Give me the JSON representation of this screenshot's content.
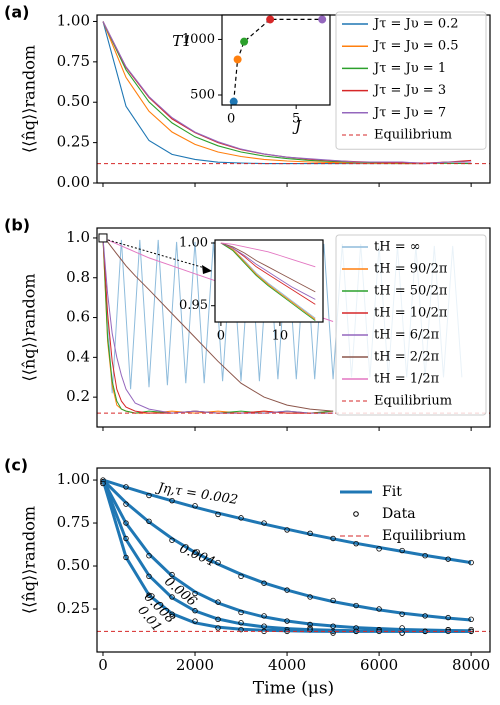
{
  "chart_data": [
    {
      "type": "line",
      "title": "(a)",
      "ylabel": "⟨⟨n̂q⟩⟩random",
      "x": [
        0,
        500,
        1000,
        1500,
        2000,
        2500,
        3000,
        3500,
        4000,
        4500,
        5000,
        5500,
        6000,
        6500,
        7000,
        7500,
        8000
      ],
      "series": [
        {
          "name": "Jτ = Jυ = 0.2",
          "color": "#1f77b4",
          "values": [
            1.0,
            0.475,
            0.263,
            0.177,
            0.146,
            0.129,
            0.124,
            0.12,
            0.12,
            0.12,
            0.12,
            0.12,
            0.12,
            0.12,
            0.12,
            0.13,
            0.13
          ]
        },
        {
          "name": "Jτ = Jυ = 0.5",
          "color": "#ff7f0e",
          "values": [
            1.0,
            0.654,
            0.444,
            0.316,
            0.239,
            0.192,
            0.164,
            0.146,
            0.136,
            0.13,
            0.126,
            0.124,
            0.122,
            0.12,
            0.12,
            0.13,
            0.13
          ]
        },
        {
          "name": "Jτ = Jυ = 1",
          "color": "#2ca02c",
          "values": [
            1.0,
            0.7,
            0.502,
            0.372,
            0.286,
            0.23,
            0.192,
            0.167,
            0.151,
            0.14,
            0.133,
            0.129,
            0.126,
            0.124,
            0.123,
            0.122,
            0.12
          ]
        },
        {
          "name": "Jτ = Jυ = 3",
          "color": "#d62728",
          "values": [
            1.0,
            0.715,
            0.529,
            0.397,
            0.312,
            0.25,
            0.207,
            0.179,
            0.16,
            0.147,
            0.138,
            0.132,
            0.128,
            0.126,
            0.124,
            0.13,
            0.14
          ]
        },
        {
          "name": "Jτ = Jυ = 7",
          "color": "#9467bd",
          "values": [
            1.0,
            0.72,
            0.535,
            0.405,
            0.315,
            0.255,
            0.21,
            0.18,
            0.16,
            0.15,
            0.14,
            0.13,
            0.13,
            0.13,
            0.12,
            0.13,
            0.13
          ]
        }
      ],
      "equilibrium": {
        "name": "Equilibrium",
        "value": 0.12,
        "color": "#d62728"
      },
      "xlim": [
        -130,
        8410
      ],
      "ylim": [
        0,
        1.04
      ],
      "xticks": [
        0,
        2000,
        4000,
        6000,
        8000
      ],
      "xticklabels": false,
      "yticks": [
        {
          "value": 0,
          "label": "0.00"
        },
        0.25,
        {
          "value": 0.5,
          "label": "0.50"
        },
        0.75,
        {
          "value": 1,
          "label": "1.00"
        }
      ]
    },
    {
      "type": "scatter",
      "xlabel": "J",
      "ylabel": "T1",
      "x": [
        0.2,
        0.5,
        1,
        3,
        7
      ],
      "values": [
        440,
        820,
        980,
        1180,
        1180
      ],
      "colors": [
        "#1f77b4",
        "#ff7f0e",
        "#2ca02c",
        "#d62728",
        "#9467bd"
      ],
      "xlim": [
        -0.7,
        7.6
      ],
      "ylim": [
        410,
        1220
      ],
      "xticks": [
        0,
        5
      ],
      "yticks": [
        500,
        1000
      ]
    },
    {
      "type": "line",
      "title": "(b)",
      "ylabel": "⟨⟨n̂q⟩⟩random",
      "x": [
        0,
        100,
        200,
        300,
        400,
        500,
        700,
        1000,
        1500,
        2000,
        2500,
        3000,
        3500,
        4000,
        4500,
        5000
      ],
      "series": [
        {
          "name": "tH = ∞",
          "color": "#8fbcdc",
          "x": [
            0,
            200,
            400,
            600,
            800,
            1000,
            1200,
            1400,
            1600,
            1800,
            2000,
            2200,
            2400,
            2600,
            2800,
            3000,
            3200,
            3400,
            3600,
            3800,
            4000,
            4200,
            4400,
            4600,
            4800,
            5000,
            5200,
            5400,
            5600,
            5800,
            6000,
            6200,
            6400,
            6600,
            6800,
            7000,
            7200,
            7400,
            7600,
            7800
          ],
          "values": [
            1.0,
            0.22,
            0.99,
            0.24,
            0.99,
            0.25,
            0.99,
            0.26,
            0.98,
            0.27,
            0.98,
            0.27,
            0.98,
            0.28,
            0.98,
            0.28,
            0.98,
            0.28,
            0.97,
            0.29,
            0.97,
            0.29,
            0.97,
            0.29,
            0.97,
            0.29,
            0.97,
            0.3,
            0.97,
            0.3,
            0.96,
            0.3,
            0.96,
            0.3,
            0.96,
            0.3,
            0.96,
            0.3,
            0.96,
            0.3
          ]
        },
        {
          "name": "tH = 90/2π",
          "color": "#ff7f0e",
          "values": [
            1.0,
            0.48,
            0.26,
            0.16,
            0.14,
            0.13,
            0.12,
            0.12,
            0.13,
            0.12,
            0.13,
            0.12,
            0.13,
            0.12,
            0.12,
            0.13
          ]
        },
        {
          "name": "tH = 50/2π",
          "color": "#2ca02c",
          "values": [
            1.0,
            0.5,
            0.28,
            0.18,
            0.14,
            0.13,
            0.12,
            0.13,
            0.12,
            0.13,
            0.12,
            0.13,
            0.12,
            0.13,
            0.12,
            0.13
          ]
        },
        {
          "name": "tH = 10/2π",
          "color": "#d62728",
          "values": [
            1.0,
            0.62,
            0.38,
            0.24,
            0.18,
            0.15,
            0.13,
            0.12,
            0.12,
            0.13,
            0.12,
            0.12,
            0.13,
            0.12,
            0.12,
            0.12
          ]
        },
        {
          "name": "tH = 6/2π",
          "color": "#9467bd",
          "values": [
            1.0,
            0.72,
            0.52,
            0.4,
            0.31,
            0.24,
            0.17,
            0.14,
            0.12,
            0.13,
            0.12,
            0.12,
            0.12,
            0.13,
            0.12,
            0.12
          ]
        },
        {
          "name": "tH = 2/2π",
          "color": "#8c564b",
          "values": [
            1.0,
            0.98,
            0.95,
            0.92,
            0.89,
            0.86,
            0.81,
            0.74,
            0.62,
            0.5,
            0.38,
            0.27,
            0.2,
            0.16,
            0.14,
            0.13
          ]
        },
        {
          "name": "tH = 1/2π",
          "color": "#e377c2",
          "values": [
            1.0,
            0.99,
            0.98,
            0.97,
            0.96,
            0.95,
            0.93,
            0.9,
            0.86,
            0.82,
            0.78,
            0.74,
            0.7,
            0.66,
            0.62,
            0.58
          ]
        }
      ],
      "equilibrium": {
        "name": "Equilibrium",
        "value": 0.12,
        "color": "#d62728"
      },
      "xlim": [
        -130,
        8410
      ],
      "ylim": [
        0.05,
        1.05
      ],
      "xticks": [
        0,
        2000,
        4000,
        6000,
        8000
      ],
      "xticklabels": false,
      "yticks": [
        0.2,
        0.4,
        0.6,
        0.8,
        {
          "value": 1,
          "label": "1.0"
        }
      ]
    },
    {
      "type": "line",
      "x": [
        0,
        2,
        4,
        6,
        8,
        10,
        12,
        14,
        16
      ],
      "series": [
        {
          "color": "#8fbcdc",
          "values": [
            1.0,
            0.995,
            0.986,
            0.976,
            0.968,
            0.961,
            0.954,
            0.947,
            0.94
          ]
        },
        {
          "color": "#ff7f0e",
          "values": [
            1.0,
            0.995,
            0.985,
            0.975,
            0.967,
            0.96,
            0.953,
            0.946,
            0.939
          ]
        },
        {
          "color": "#2ca02c",
          "values": [
            1.0,
            0.994,
            0.984,
            0.974,
            0.966,
            0.959,
            0.952,
            0.945,
            0.938
          ]
        },
        {
          "color": "#d62728",
          "values": [
            1.0,
            0.996,
            0.989,
            0.981,
            0.975,
            0.969,
            0.963,
            0.957,
            0.951
          ]
        },
        {
          "color": "#9467bd",
          "values": [
            1.0,
            0.996,
            0.99,
            0.983,
            0.977,
            0.971,
            0.965,
            0.96,
            0.955
          ]
        },
        {
          "color": "#8c564b",
          "values": [
            1.0,
            0.997,
            0.992,
            0.986,
            0.981,
            0.976,
            0.971,
            0.966,
            0.961
          ]
        },
        {
          "color": "#e377c2",
          "values": [
            1.0,
            0.999,
            0.997,
            0.995,
            0.993,
            0.99,
            0.987,
            0.984,
            0.981
          ]
        }
      ],
      "xlim": [
        -1,
        17.3
      ],
      "ylim": [
        0.937,
        1.0024
      ],
      "xticks": [
        0,
        10
      ],
      "yticks": [
        0.95,
        {
          "value": 1,
          "label": "1.00"
        }
      ]
    },
    {
      "type": "fit",
      "title": "(c)",
      "ylabel": "⟨⟨n̂q⟩⟩random",
      "xlabel": "Time (μs)",
      "fit_name": "Fit",
      "data_name": "Data",
      "color": "#1f77b4",
      "x": [
        0,
        500,
        1000,
        1500,
        2000,
        2500,
        3000,
        3500,
        4000,
        4500,
        5000,
        5500,
        6000,
        6500,
        7000,
        7500,
        8000
      ],
      "curves": [
        {
          "label": "Jη,τ = 0.002",
          "fit": [
            1.0,
            0.958,
            0.917,
            0.879,
            0.842,
            0.808,
            0.776,
            0.744,
            0.714,
            0.685,
            0.658,
            0.632,
            0.608,
            0.585,
            0.562,
            0.541,
            0.52
          ],
          "data": [
            1.0,
            0.96,
            0.91,
            0.88,
            0.85,
            0.8,
            0.78,
            0.75,
            0.71,
            0.69,
            0.66,
            0.63,
            0.6,
            0.59,
            0.56,
            0.54,
            0.52
          ]
        },
        {
          "label": "0.004",
          "fit": [
            1.0,
            0.868,
            0.756,
            0.66,
            0.579,
            0.511,
            0.452,
            0.402,
            0.36,
            0.324,
            0.293,
            0.268,
            0.245,
            0.226,
            0.211,
            0.197,
            0.186
          ],
          "data": [
            0.99,
            0.86,
            0.76,
            0.65,
            0.58,
            0.52,
            0.44,
            0.4,
            0.36,
            0.32,
            0.3,
            0.27,
            0.25,
            0.22,
            0.21,
            0.2,
            0.19
          ]
        },
        {
          "label": "0.006",
          "fit": [
            1.0,
            0.749,
            0.57,
            0.442,
            0.35,
            0.285,
            0.238,
            0.204,
            0.18,
            0.163,
            0.151,
            0.142,
            0.136,
            0.131,
            0.128,
            0.125,
            0.124
          ],
          "data": [
            0.99,
            0.75,
            0.56,
            0.45,
            0.34,
            0.29,
            0.23,
            0.21,
            0.18,
            0.16,
            0.15,
            0.14,
            0.13,
            0.14,
            0.12,
            0.13,
            0.12
          ]
        },
        {
          "label": "0.008",
          "fit": [
            1.0,
            0.654,
            0.444,
            0.316,
            0.239,
            0.192,
            0.164,
            0.146,
            0.136,
            0.13,
            0.126,
            0.124,
            0.122,
            0.121,
            0.121,
            0.12,
            0.12
          ],
          "data": [
            0.98,
            0.66,
            0.44,
            0.32,
            0.24,
            0.19,
            0.17,
            0.15,
            0.13,
            0.14,
            0.12,
            0.12,
            0.13,
            0.11,
            0.12,
            0.13,
            0.12
          ]
        },
        {
          "label": "0.01",
          "fit": [
            1.0,
            0.551,
            0.331,
            0.223,
            0.17,
            0.145,
            0.132,
            0.126,
            0.123,
            0.121,
            0.12,
            0.12,
            0.12,
            0.12,
            0.12,
            0.12,
            0.12
          ],
          "data": [
            0.98,
            0.55,
            0.33,
            0.22,
            0.18,
            0.14,
            0.13,
            0.12,
            0.12,
            0.13,
            0.11,
            0.12,
            0.12,
            0.11,
            0.12,
            0.12,
            0.13
          ]
        }
      ],
      "equilibrium": {
        "name": "Equilibrium",
        "value": 0.12,
        "color": "#d62728"
      },
      "xlim": [
        -130,
        8410
      ],
      "ylim": [
        0,
        1.07
      ],
      "xticks": [
        0,
        2000,
        4000,
        6000,
        8000
      ],
      "yticks": [
        0.25,
        {
          "value": 0.5,
          "label": "0.50"
        },
        0.75,
        {
          "value": 1,
          "label": "1.00"
        }
      ]
    }
  ]
}
